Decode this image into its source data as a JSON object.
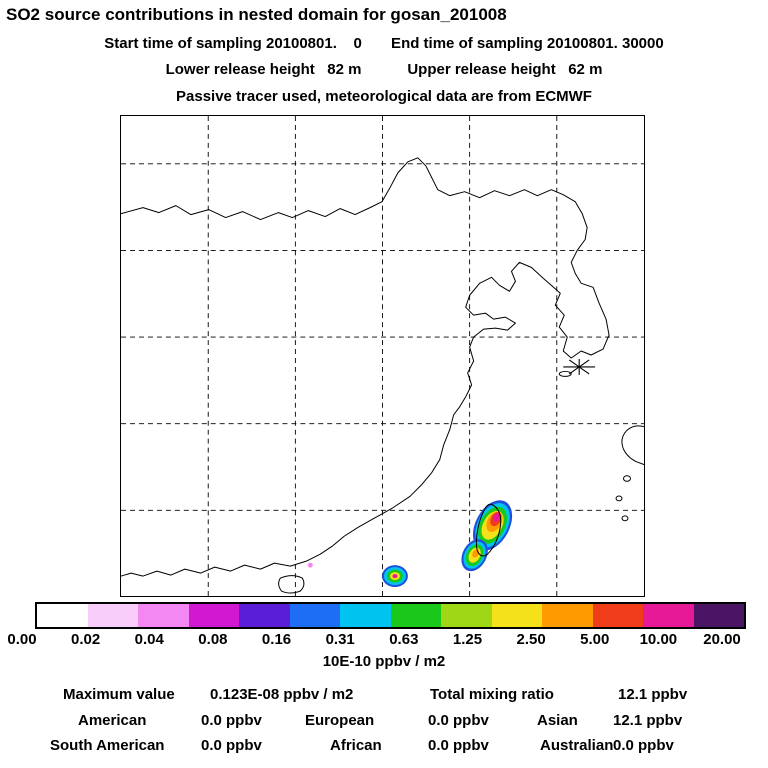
{
  "header": {
    "title": "SO2 source contributions in nested domain for gosan_201008",
    "line2": "Start time of sampling 20100801.    0       End time of sampling 20100801. 30000",
    "line3": "Lower release height   82 m           Upper release height   62 m",
    "line4": "Passive tracer used, meteorological data are from ECMWF"
  },
  "chart_data": {
    "type": "heatmap",
    "title": "SO2 source contributions in nested domain for gosan_201008",
    "map_region": "East Asia nested domain with coastlines (China coast, Korea, Taiwan, Kyushu) and dashed lat/lon grid",
    "receptor_marker": "asterisk star at Gosan (Jeju Island)",
    "colorbar": {
      "tick_labels": [
        "0.00",
        "0.02",
        "0.04",
        "0.08",
        "0.16",
        "0.31",
        "0.63",
        "1.25",
        "2.50",
        "5.00",
        "10.00",
        "20.00"
      ],
      "units": "10E-10 ppbv / m2",
      "colors": [
        "#ffffff",
        "#f9cdf9",
        "#f388f3",
        "#d219d2",
        "#5a1ed7",
        "#1e6ef5",
        "#00c3f0",
        "#19c819",
        "#a0d714",
        "#f5e119",
        "#ff9b00",
        "#f03c19",
        "#e61996",
        "#4b1464"
      ]
    },
    "plumes": [
      {
        "location": "Taiwan and Taiwan Strait",
        "description": "elongated SW-NE plume with magenta/red core, orange-yellow-green rings and cyan-blue outer edge"
      },
      {
        "location": "off south China coast, southwest of Taiwan",
        "description": "small round plume with magenta core, yellow-green ring and cyan-blue edge"
      },
      {
        "location": "south China coast",
        "description": "tiny pale pink speck"
      }
    ],
    "stats": {
      "max_label": "Maximum value",
      "max_value": "0.123E-08 ppbv / m2",
      "total_label": "Total mixing ratio",
      "total_value": "12.1 ppbv",
      "regions": [
        {
          "label": "American",
          "value": "0.0 ppbv"
        },
        {
          "label": "European",
          "value": "0.0 ppbv"
        },
        {
          "label": "Asian",
          "value": "12.1 ppbv"
        },
        {
          "label": "South American",
          "value": "0.0 ppbv"
        },
        {
          "label": "African",
          "value": "0.0 ppbv"
        },
        {
          "label": "Australian",
          "value": "0.0 ppbv"
        }
      ]
    }
  }
}
